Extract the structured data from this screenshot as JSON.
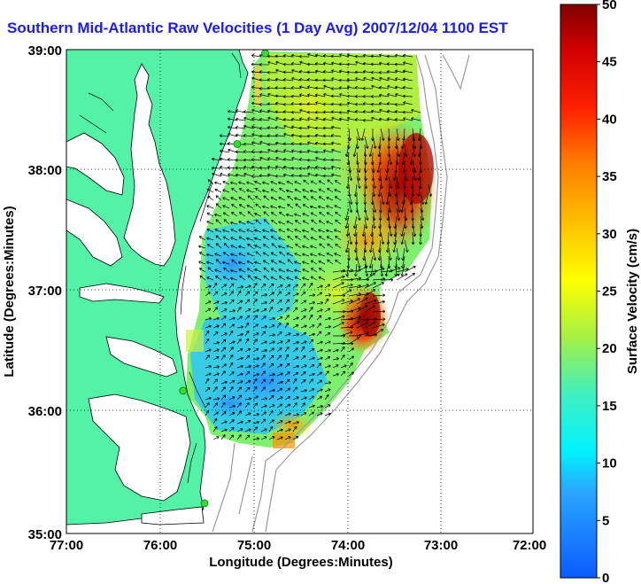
{
  "title": "Southern Mid-Atlantic Raw Velocities (1 Day Avg) 2007/12/04 1100 EST",
  "map": {
    "xlabel": "Longitude (Degrees:Minutes)",
    "ylabel": "Latitude (Degrees:Minutes)",
    "x_ticks": [
      "77:00",
      "76:00",
      "75:00",
      "74:00",
      "73:00",
      "72:00"
    ],
    "y_ticks": [
      "39:00",
      "38:00",
      "37:00",
      "36:00",
      "35:00"
    ],
    "x_range": [
      -77,
      -72
    ],
    "y_range": [
      35,
      39
    ],
    "land_color": "#54f2a6",
    "arrow_color": "#000000",
    "station_color": "#33dd33"
  },
  "colorbar": {
    "label": "Surface Velocity (cm/s)",
    "ticks": [
      "0",
      "5",
      "10",
      "15",
      "20",
      "25",
      "30",
      "35",
      "40",
      "45",
      "50"
    ],
    "range": [
      0,
      50
    ]
  },
  "chart_data": {
    "type": "heatmap",
    "title": "Southern Mid-Atlantic Raw Velocities (1 Day Avg) 2007/12/04 1100 EST",
    "xlabel": "Longitude (Degrees:Minutes)",
    "ylabel": "Latitude (Degrees:Minutes)",
    "xlim": [
      -77,
      -72
    ],
    "ylim": [
      35,
      39
    ],
    "colorbar_label": "Surface Velocity (cm/s)",
    "colorbar_range": [
      0,
      50
    ],
    "grid": true,
    "stations": [
      {
        "lon": -74.87,
        "lat": 38.97
      },
      {
        "lon": -75.17,
        "lat": 38.22
      },
      {
        "lon": -75.75,
        "lat": 36.18
      },
      {
        "lon": -75.52,
        "lat": 35.25
      }
    ],
    "field_samples": [
      {
        "lon": -73.3,
        "lat": 37.9,
        "speed": 48
      },
      {
        "lon": -73.5,
        "lat": 37.5,
        "speed": 40
      },
      {
        "lon": -73.8,
        "lat": 36.8,
        "speed": 46
      },
      {
        "lon": -73.7,
        "lat": 36.6,
        "speed": 42
      },
      {
        "lon": -74.3,
        "lat": 38.5,
        "speed": 24
      },
      {
        "lon": -74.6,
        "lat": 38.0,
        "speed": 20
      },
      {
        "lon": -75.0,
        "lat": 37.2,
        "speed": 9
      },
      {
        "lon": -75.3,
        "lat": 37.0,
        "speed": 8
      },
      {
        "lon": -75.2,
        "lat": 36.3,
        "speed": 10
      },
      {
        "lon": -74.4,
        "lat": 36.2,
        "speed": 16
      },
      {
        "lon": -74.0,
        "lat": 37.0,
        "speed": 20
      },
      {
        "lon": -74.7,
        "lat": 38.7,
        "speed": 22
      }
    ]
  }
}
